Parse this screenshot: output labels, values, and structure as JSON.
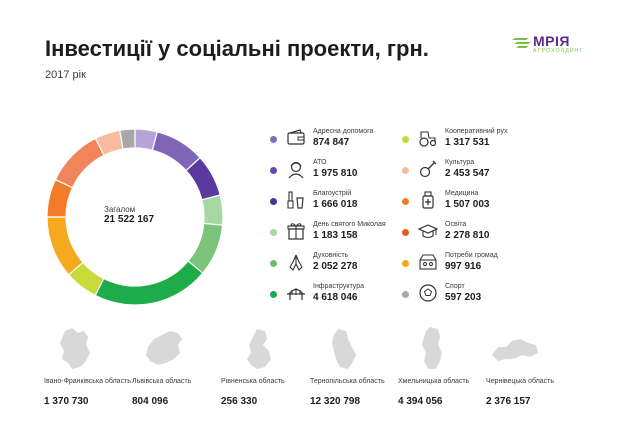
{
  "header": {
    "title": "Інвестиції у соціальні проекти, грн.",
    "subtitle": "2017 рік",
    "logo_word": "МРІЯ",
    "logo_sub": "АГРОХОЛДИНГ"
  },
  "chart_data": {
    "type": "pie",
    "title": "Інвестиції у соціальні проекти, грн.",
    "subtitle": "2017 рік",
    "total_label": "Загалом",
    "total_value": "21 522 167",
    "legend_position": "right",
    "slices": [
      {
        "name": "Адресна допомога",
        "label": "874 847",
        "value": 874847,
        "color": "#b6a3d8",
        "icon": "wallet-icon"
      },
      {
        "name": "АТО",
        "label": "1 975 810",
        "value": 1975810,
        "color": "#8064b8",
        "icon": "soldier-icon"
      },
      {
        "name": "Благоустрій",
        "label": "1 666 018",
        "value": 1666018,
        "color": "#5b3a9e",
        "icon": "brush-bucket-icon"
      },
      {
        "name": "День святого Миколая",
        "label": "1 183 158",
        "value": 1183158,
        "color": "#a5d8a3",
        "icon": "gift-icon"
      },
      {
        "name": "Духовність",
        "label": "2 052 278",
        "value": 2052278,
        "color": "#7cc47a",
        "icon": "praying-hands-icon"
      },
      {
        "name": "Інфраструктура",
        "label": "4 618 046",
        "value": 4618046,
        "color": "#1eab4a",
        "icon": "bridge-icon"
      },
      {
        "name": "Кооперативний рух",
        "label": "1 317 531",
        "value": 1317531,
        "color": "#c8db3a",
        "icon": "tractor-icon"
      },
      {
        "name": "Культура",
        "label": "2 453 547",
        "value": 2453547,
        "color": "#f7a91d",
        "icon": "guitar-icon"
      },
      {
        "name": "Медицина",
        "label": "1 507 003",
        "value": 1507003,
        "color": "#f47b2a",
        "icon": "medicine-icon"
      },
      {
        "name": "Освіта",
        "label": "2 278 810",
        "value": 2278810,
        "color": "#f0855b",
        "icon": "graduation-cap-icon"
      },
      {
        "name": "Потреби громад",
        "label": "997 916",
        "value": 997916,
        "color": "#f9bba0",
        "icon": "community-icon"
      },
      {
        "name": "Спорт",
        "label": "597 203",
        "value": 597203,
        "color": "#a8a8a8",
        "icon": "ball-icon"
      }
    ],
    "legend_colors": {
      "Адресна допомога": "#8a6bc4",
      "АТО": "#6a48b0",
      "Благоустрій": "#4f2d94",
      "День святого Миколая": "#a5d8a3",
      "Духовність": "#6cbf6a",
      "Інфраструктура": "#1eab4a",
      "Кооперативний рух": "#c8db3a",
      "Культура": "#f9bba0",
      "Медицина": "#f47b2a",
      "Освіта": "#e85a24",
      "Потреби громад": "#f7a91d",
      "Спорт": "#a8a8a8"
    }
  },
  "regions": [
    {
      "name": "Івано-Франківська область",
      "value": "1 370 730",
      "color": "#d8d8d8"
    },
    {
      "name": "Львівська область",
      "value": "804 096",
      "color": "#d8d8d8"
    },
    {
      "name": "Рівненська область",
      "value": "256 330",
      "color": "#d8d8d8"
    },
    {
      "name": "Тернопільська область",
      "value": "12 320 798",
      "color": "#d8d8d8"
    },
    {
      "name": "Хмельницька область",
      "value": "4 394 056",
      "color": "#d8d8d8"
    },
    {
      "name": "Чернівецька область",
      "value": "2 376 157",
      "color": "#d8d8d8"
    }
  ]
}
